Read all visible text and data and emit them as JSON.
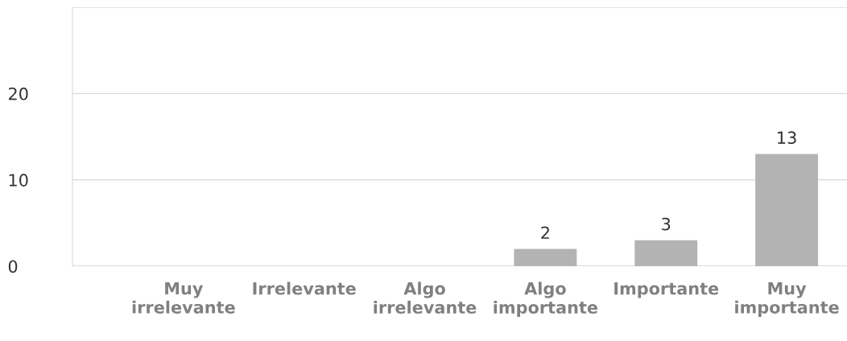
{
  "chart_data": {
    "type": "bar",
    "categories": [
      "Muy\nirrelevante",
      "Irrelevante",
      "Algo\nirrelevante",
      "Algo\nimportante",
      "Importante",
      "Muy\nimportante"
    ],
    "values": [
      0,
      0,
      0,
      2,
      3,
      13
    ],
    "value_labels": [
      null,
      null,
      null,
      "2",
      "3",
      "13"
    ],
    "color": "#b3b3b3",
    "ylim": [
      0,
      30
    ],
    "yticks": [
      0,
      10,
      20,
      {
        "value": 30,
        "label": null
      }
    ],
    "grid": "y",
    "legend": false
  }
}
